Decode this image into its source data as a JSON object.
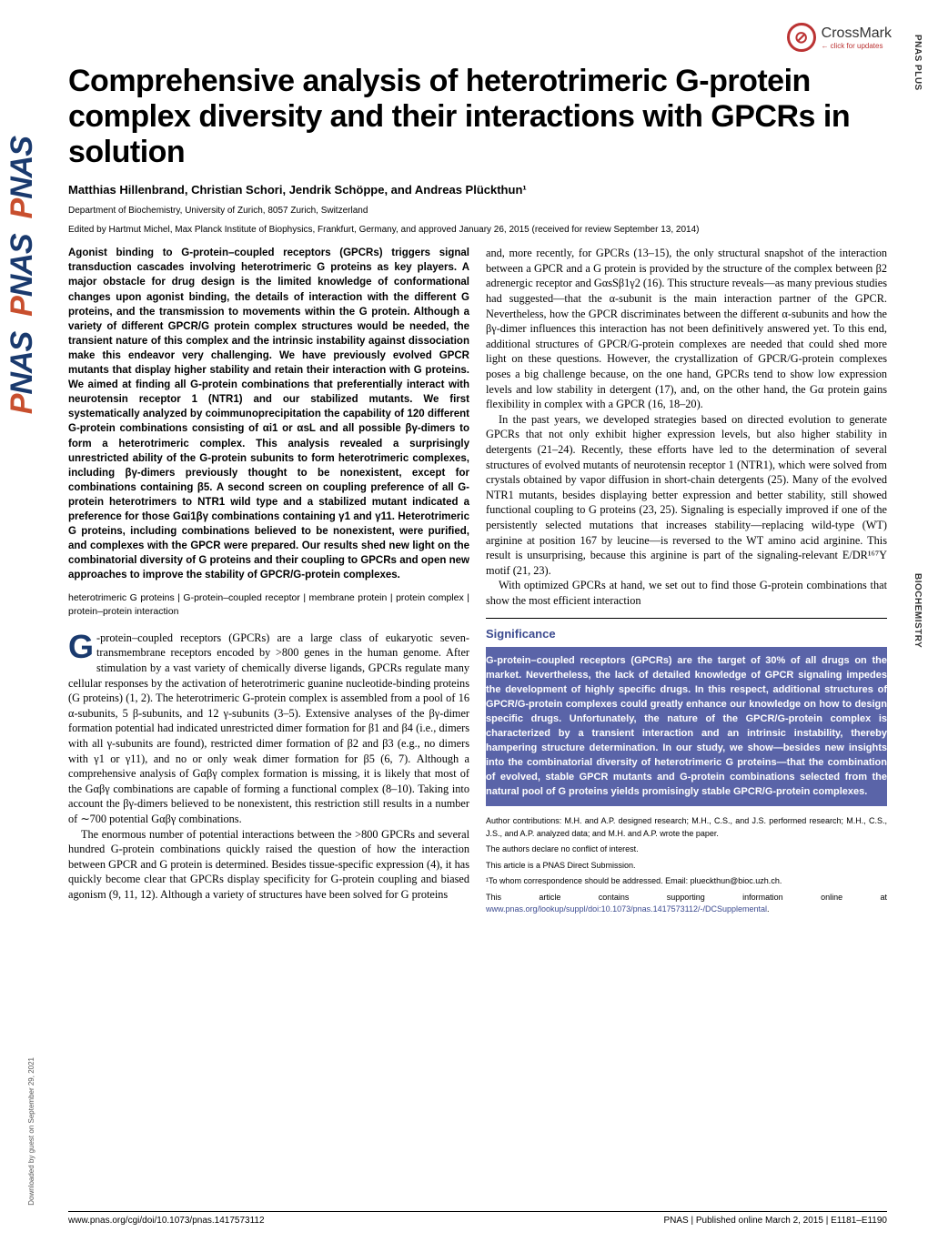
{
  "journal_side": "PNAS",
  "section_side_right": "PNAS PLUS",
  "section_side_biochem": "BIOCHEMISTRY",
  "crossmark": {
    "main": "CrossMark",
    "sub": "click for updates"
  },
  "title": "Comprehensive analysis of heterotrimeric G-protein complex diversity and their interactions with GPCRs in solution",
  "authors": "Matthias Hillenbrand, Christian Schori, Jendrik Schöppe, and Andreas Plückthun¹",
  "affiliation": "Department of Biochemistry, University of Zurich, 8057 Zurich, Switzerland",
  "edited": "Edited by Hartmut Michel, Max Planck Institute of Biophysics, Frankfurt, Germany, and approved January 26, 2015 (received for review September 13, 2014)",
  "abstract": "Agonist binding to G-protein–coupled receptors (GPCRs) triggers signal transduction cascades involving heterotrimeric G proteins as key players. A major obstacle for drug design is the limited knowledge of conformational changes upon agonist binding, the details of interaction with the different G proteins, and the transmission to movements within the G protein. Although a variety of different GPCR/G protein complex structures would be needed, the transient nature of this complex and the intrinsic instability against dissociation make this endeavor very challenging. We have previously evolved GPCR mutants that display higher stability and retain their interaction with G proteins. We aimed at finding all G-protein combinations that preferentially interact with neurotensin receptor 1 (NTR1) and our stabilized mutants. We first systematically analyzed by coimmunoprecipitation the capability of 120 different G-protein combinations consisting of αi1 or αsL and all possible βγ-dimers to form a heterotrimeric complex. This analysis revealed a surprisingly unrestricted ability of the G-protein subunits to form heterotrimeric complexes, including βγ-dimers previously thought to be nonexistent, except for combinations containing β5. A second screen on coupling preference of all G-protein heterotrimers to NTR1 wild type and a stabilized mutant indicated a preference for those Gαi1βγ combinations containing γ1 and γ11. Heterotrimeric G proteins, including combinations believed to be nonexistent, were purified, and complexes with the GPCR were prepared. Our results shed new light on the combinatorial diversity of G proteins and their coupling to GPCRs and open new approaches to improve the stability of GPCR/G-protein complexes.",
  "keywords": "heterotrimeric G proteins | G-protein–coupled receptor | membrane protein | protein complex | protein–protein interaction",
  "body_left_1": "-protein–coupled receptors (GPCRs) are a large class of eukaryotic seven-transmembrane receptors encoded by >800 genes in the human genome. After stimulation by a vast variety of chemically diverse ligands, GPCRs regulate many cellular responses by the activation of heterotrimeric guanine nucleotide-binding proteins (G proteins) (1, 2). The heterotrimeric G-protein complex is assembled from a pool of 16 α-subunits, 5 β-subunits, and 12 γ-subunits (3–5). Extensive analyses of the βγ-dimer formation potential had indicated unrestricted dimer formation for β1 and β4 (i.e., dimers with all γ-subunits are found), restricted dimer formation of β2 and β3 (e.g., no dimers with γ1 or γ11), and no or only weak dimer formation for β5 (6, 7). Although a comprehensive analysis of Gαβγ complex formation is missing, it is likely that most of the Gαβγ combinations are capable of forming a functional complex (8–10). Taking into account the βγ-dimers believed to be nonexistent, this restriction still results in a number of ∼700 potential Gαβγ combinations.",
  "body_left_2": "The enormous number of potential interactions between the >800 GPCRs and several hundred G-protein combinations quickly raised the question of how the interaction between GPCR and G protein is determined. Besides tissue-specific expression (4), it has quickly become clear that GPCRs display specificity for G-protein coupling and biased agonism (9, 11, 12). Although a variety of structures have been solved for G proteins",
  "body_right_1": "and, more recently, for GPCRs (13–15), the only structural snapshot of the interaction between a GPCR and a G protein is provided by the structure of the complex between β2 adrenergic receptor and GαsSβ1γ2 (16). This structure reveals—as many previous studies had suggested—that the α-subunit is the main interaction partner of the GPCR. Nevertheless, how the GPCR discriminates between the different α-subunits and how the βγ-dimer influences this interaction has not been definitively answered yet. To this end, additional structures of GPCR/G-protein complexes are needed that could shed more light on these questions. However, the crystallization of GPCR/G-protein complexes poses a big challenge because, on the one hand, GPCRs tend to show low expression levels and low stability in detergent (17), and, on the other hand, the Gα protein gains flexibility in complex with a GPCR (16, 18–20).",
  "body_right_2": "In the past years, we developed strategies based on directed evolution to generate GPCRs that not only exhibit higher expression levels, but also higher stability in detergents (21–24). Recently, these efforts have led to the determination of several structures of evolved mutants of neurotensin receptor 1 (NTR1), which were solved from crystals obtained by vapor diffusion in short-chain detergents (25). Many of the evolved NTR1 mutants, besides displaying better expression and better stability, still showed functional coupling to G proteins (23, 25). Signaling is especially improved if one of the persistently selected mutations that increases stability—replacing wild-type (WT) arginine at position 167 by leucine—is reversed to the WT amino acid arginine. This result is unsurprising, because this arginine is part of the signaling-relevant E/DR¹⁶⁷Y motif (21, 23).",
  "body_right_3": "With optimized GPCRs at hand, we set out to find those G-protein combinations that show the most efficient interaction",
  "significance_title": "Significance",
  "significance_body": "G-protein–coupled receptors (GPCRs) are the target of 30% of all drugs on the market. Nevertheless, the lack of detailed knowledge of GPCR signaling impedes the development of highly specific drugs. In this respect, additional structures of GPCR/G-protein complexes could greatly enhance our knowledge on how to design specific drugs. Unfortunately, the nature of the GPCR/G-protein complex is characterized by a transient interaction and an intrinsic instability, thereby hampering structure determination. In our study, we show—besides new insights into the combinatorial diversity of heterotrimeric G proteins—that the combination of evolved, stable GPCR mutants and G-protein combinations selected from the natural pool of G proteins yields promisingly stable GPCR/G-protein complexes.",
  "footnotes": {
    "contrib": "Author contributions: M.H. and A.P. designed research; M.H., C.S., and J.S. performed research; M.H., C.S., J.S., and A.P. analyzed data; and M.H. and A.P. wrote the paper.",
    "conflict": "The authors declare no conflict of interest.",
    "direct": "This article is a PNAS Direct Submission.",
    "corr": "¹To whom correspondence should be addressed. Email: plueckthun@bioc.uzh.ch.",
    "supp_text": "This article contains supporting information online at ",
    "supp_link": "www.pnas.org/lookup/suppl/doi:10.1073/pnas.1417573112/-/DCSupplemental",
    "supp_period": "."
  },
  "footer": {
    "doi": "www.pnas.org/cgi/doi/10.1073/pnas.1417573112",
    "cite": "PNAS | Published online March 2, 2015 | E1181–E1190"
  },
  "download_note": "Downloaded by guest on September 29, 2021",
  "colors": {
    "brand_blue": "#1a3a6e",
    "brand_orange": "#c84f2e",
    "sig_bg": "#5a64a8",
    "sig_title": "#3b4a8f",
    "link": "#3b4a8f"
  }
}
